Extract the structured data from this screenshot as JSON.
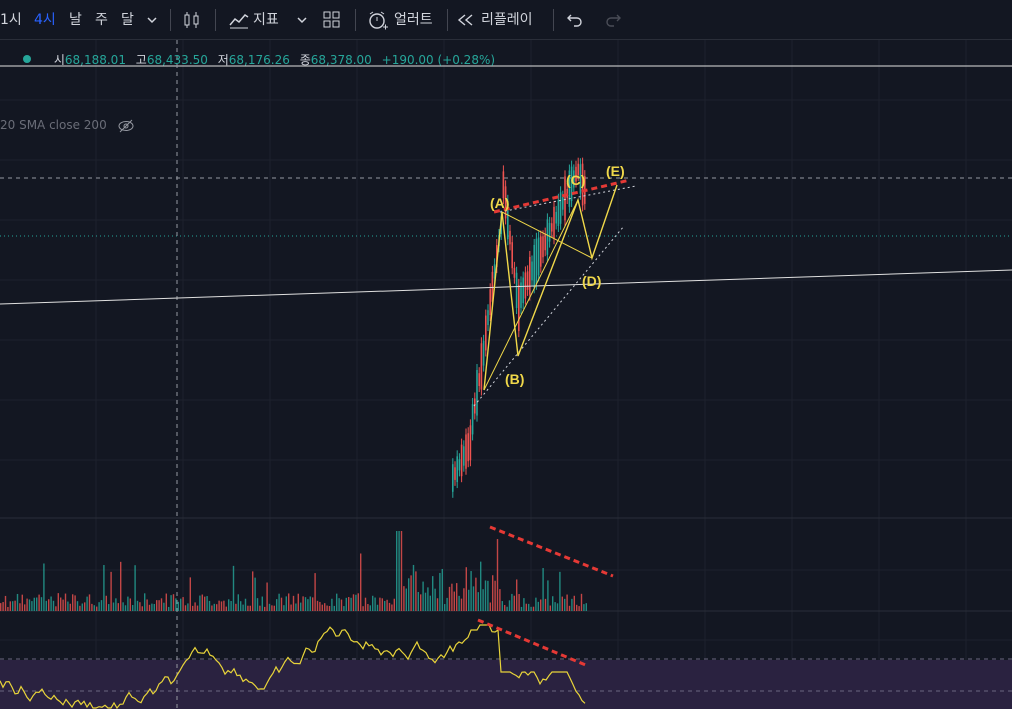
{
  "toolbar": {
    "intervals": [
      "1시",
      "4시",
      "날",
      "주",
      "달"
    ],
    "active_interval": "4시",
    "indicators_label": "지표",
    "alert_label": "얼러트",
    "replay_label": "리플레이"
  },
  "legend": {
    "open_label": "시",
    "open_value": "68,188.01",
    "high_label": "고",
    "high_value": "68,433.50",
    "low_value": "68,176.26",
    "close_label": "종",
    "close_value": "68,378.00",
    "change": "+190.00 (+0.28%)"
  },
  "indicator": {
    "label": "20 SMA close 200"
  },
  "annotations": {
    "A": "(A)",
    "B": "(B)",
    "C": "(C)",
    "D": "(D)",
    "E": "(E)"
  },
  "colors": {
    "background": "#131722",
    "up": "#26a69a",
    "down": "#ef5350",
    "wave": "#f0d84a",
    "trend": "#e53935",
    "rsi": "#e8d43a",
    "accent": "#2962ff"
  }
}
